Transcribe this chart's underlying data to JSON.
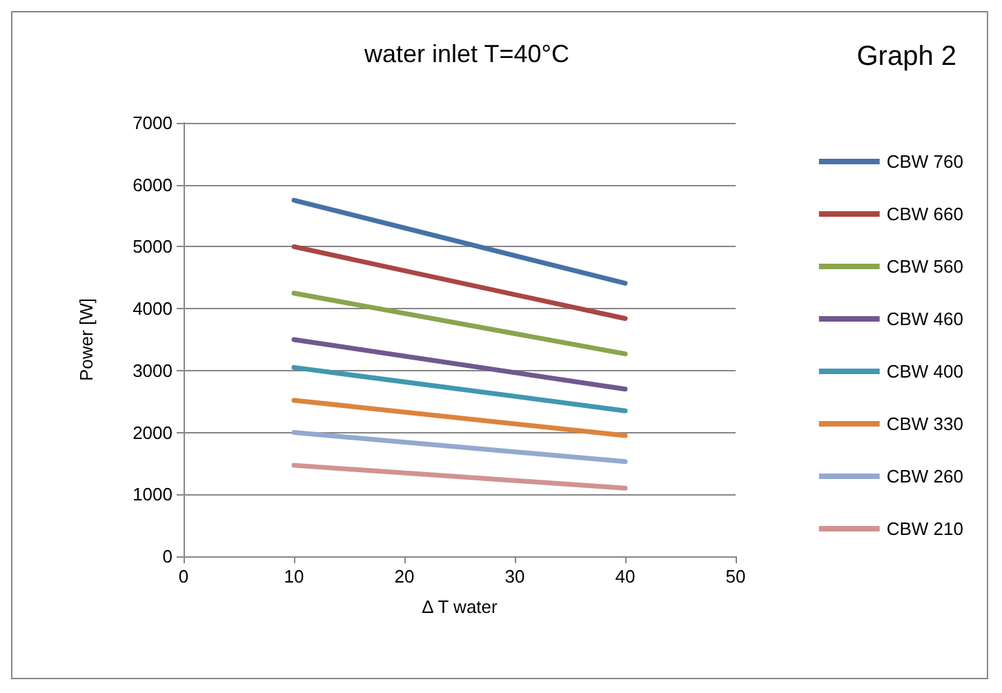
{
  "chart_data": {
    "type": "line",
    "title": "water inlet T=40°C",
    "annotations": [
      "Graph 2"
    ],
    "xlabel": "Δ T water",
    "ylabel": "Power [W]",
    "x": [
      10,
      40
    ],
    "series": [
      {
        "name": "CBW 760",
        "color": "#4572a7",
        "values": [
          5750,
          4410
        ]
      },
      {
        "name": "CBW 660",
        "color": "#aa4643",
        "values": [
          5000,
          3840
        ]
      },
      {
        "name": "CBW 560",
        "color": "#89a54e",
        "values": [
          4250,
          3270
        ]
      },
      {
        "name": "CBW 460",
        "color": "#71588f",
        "values": [
          3500,
          2700
        ]
      },
      {
        "name": "CBW 400",
        "color": "#4198af",
        "values": [
          3050,
          2350
        ]
      },
      {
        "name": "CBW 330",
        "color": "#db843d",
        "values": [
          2520,
          1950
        ]
      },
      {
        "name": "CBW 260",
        "color": "#93a9cf",
        "values": [
          2000,
          1530
        ]
      },
      {
        "name": "CBW 210",
        "color": "#d19392",
        "values": [
          1470,
          1100
        ]
      }
    ],
    "xlim": [
      0,
      50
    ],
    "xticks": [
      0,
      10,
      20,
      30,
      40,
      50
    ],
    "ylim": [
      0,
      7000
    ],
    "yticks": [
      0,
      1000,
      2000,
      3000,
      4000,
      5000,
      6000,
      7000
    ],
    "grid": "y",
    "legend": "right",
    "marker": "none",
    "line_style": "solid"
  }
}
